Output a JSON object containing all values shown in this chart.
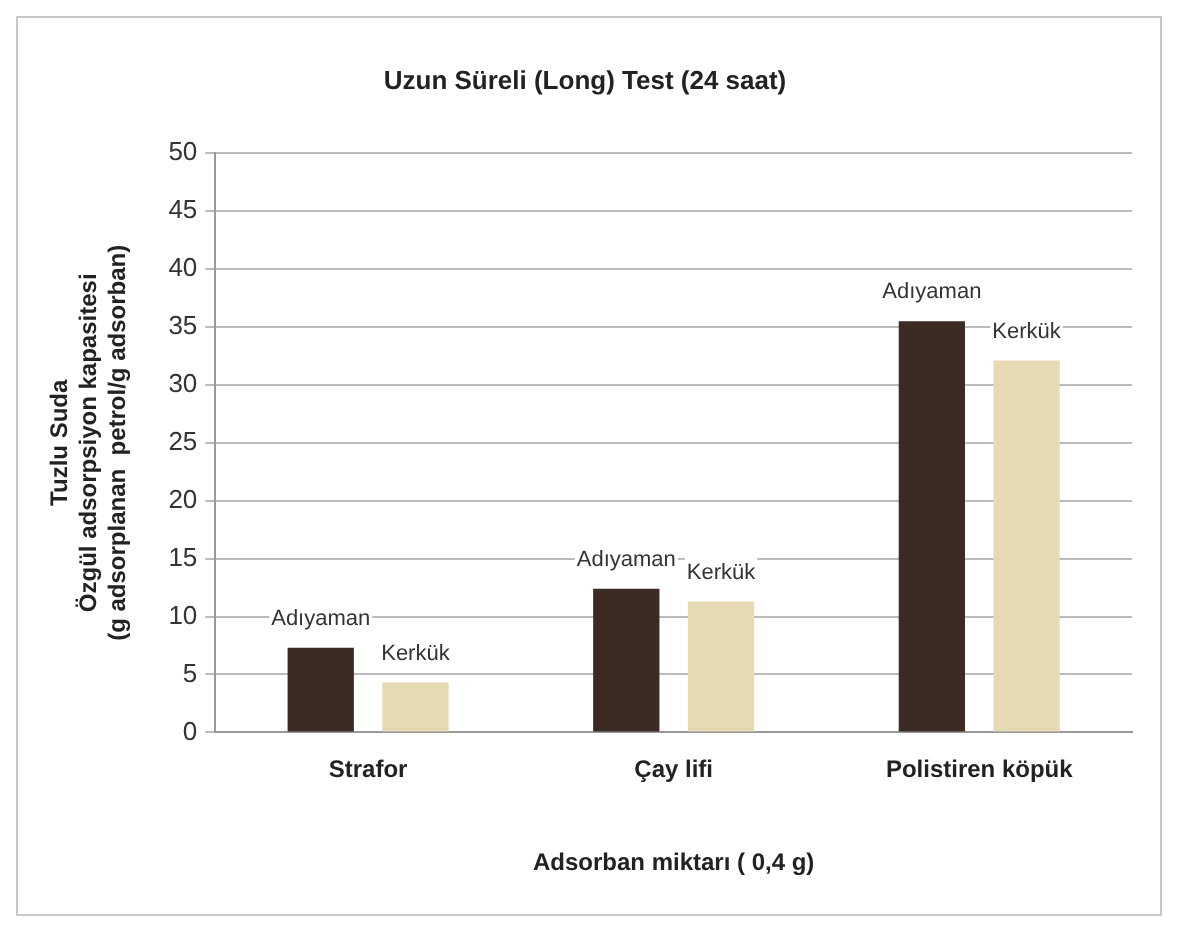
{
  "chart_data": {
    "type": "bar",
    "title": "Uzun Süreli (Long) Test (24 saat)",
    "xlabel": "Adsorban miktarı ( 0,4 g)",
    "ylabel": "Tuzlu Suda\nÖzgül adsorpsiyon kapasitesi\n(g adsorplanan  petrol/g adsorban)",
    "categories": [
      "Strafor",
      "Çay lifi",
      "Polistiren köpük"
    ],
    "series": [
      {
        "name": "Adıyaman",
        "color": "#3b2b22",
        "values": [
          7.3,
          12.4,
          35.5
        ]
      },
      {
        "name": "Kerkük",
        "color": "#e6dab5",
        "values": [
          4.3,
          11.3,
          32.1
        ]
      }
    ],
    "ylim": [
      0,
      50
    ],
    "yticks": [
      0,
      5,
      10,
      15,
      20,
      25,
      30,
      35,
      40,
      45,
      50
    ],
    "grid": "y",
    "legend": false
  }
}
